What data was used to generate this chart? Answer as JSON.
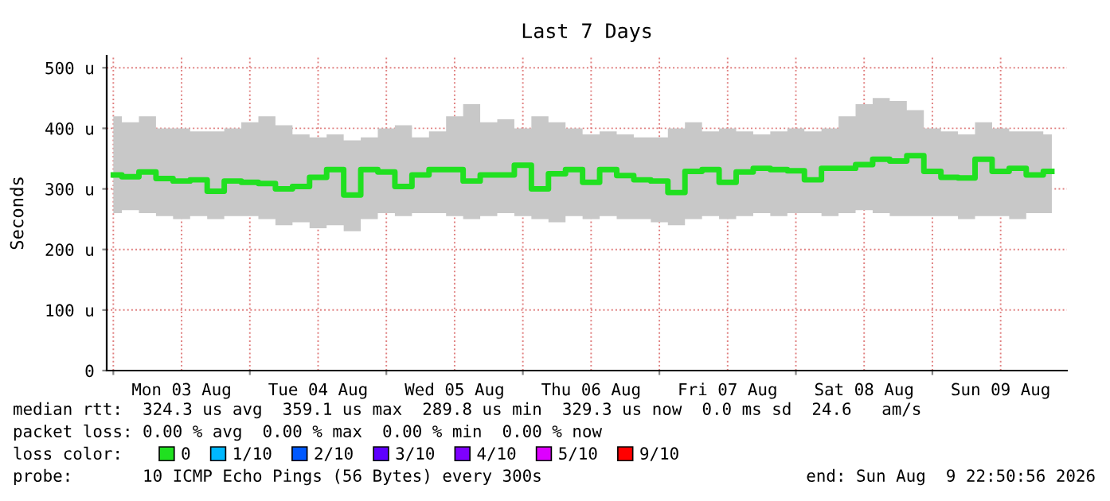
{
  "chart_data": {
    "type": "step",
    "title": "Last 7 Days",
    "ylabel": "Seconds",
    "legend_title": "loss color:",
    "x": [
      "2026-08-03T00:00",
      "2026-08-03T03:00",
      "2026-08-03T06:00",
      "2026-08-03T09:00",
      "2026-08-03T12:00",
      "2026-08-03T15:00",
      "2026-08-03T18:00",
      "2026-08-03T21:00",
      "2026-08-04T00:00",
      "2026-08-04T03:00",
      "2026-08-04T06:00",
      "2026-08-04T09:00",
      "2026-08-04T12:00",
      "2026-08-04T15:00",
      "2026-08-04T18:00",
      "2026-08-04T21:00",
      "2026-08-05T00:00",
      "2026-08-05T03:00",
      "2026-08-05T06:00",
      "2026-08-05T09:00",
      "2026-08-05T12:00",
      "2026-08-05T15:00",
      "2026-08-05T18:00",
      "2026-08-05T21:00",
      "2026-08-06T00:00",
      "2026-08-06T03:00",
      "2026-08-06T06:00",
      "2026-08-06T09:00",
      "2026-08-06T12:00",
      "2026-08-06T15:00",
      "2026-08-06T18:00",
      "2026-08-06T21:00",
      "2026-08-07T00:00",
      "2026-08-07T03:00",
      "2026-08-07T06:00",
      "2026-08-07T09:00",
      "2026-08-07T12:00",
      "2026-08-07T15:00",
      "2026-08-07T18:00",
      "2026-08-07T21:00",
      "2026-08-08T00:00",
      "2026-08-08T03:00",
      "2026-08-08T06:00",
      "2026-08-08T09:00",
      "2026-08-08T12:00",
      "2026-08-08T15:00",
      "2026-08-08T18:00",
      "2026-08-08T21:00",
      "2026-08-09T00:00",
      "2026-08-09T03:00",
      "2026-08-09T06:00",
      "2026-08-09T09:00",
      "2026-08-09T12:00",
      "2026-08-09T15:00",
      "2026-08-09T18:00",
      "2026-08-09T21:00"
    ],
    "series": [
      {
        "name": "0",
        "color": "#20e020",
        "values": [
          323,
          320,
          328,
          317,
          313,
          315,
          296,
          313,
          311,
          309,
          300,
          304,
          319,
          332,
          290,
          332,
          328,
          304,
          323,
          332,
          332,
          313,
          323,
          323,
          339,
          300,
          325,
          332,
          311,
          332,
          322,
          315,
          313,
          294,
          329,
          332,
          311,
          328,
          334,
          332,
          330,
          315,
          334,
          334,
          340,
          349,
          346,
          355,
          329,
          319,
          318,
          349,
          329,
          334,
          323,
          329
        ],
        "upper": [
          420,
          410,
          420,
          400,
          400,
          395,
          395,
          400,
          410,
          420,
          405,
          390,
          385,
          390,
          380,
          385,
          400,
          405,
          385,
          395,
          420,
          440,
          410,
          415,
          400,
          420,
          410,
          400,
          390,
          395,
          390,
          385,
          385,
          400,
          410,
          395,
          400,
          395,
          390,
          395,
          400,
          395,
          400,
          420,
          440,
          450,
          445,
          430,
          400,
          395,
          390,
          410,
          400,
          395,
          395,
          390
        ],
        "lower": [
          260,
          265,
          260,
          255,
          250,
          255,
          250,
          255,
          255,
          250,
          240,
          245,
          235,
          240,
          230,
          250,
          260,
          255,
          260,
          260,
          255,
          250,
          255,
          260,
          255,
          250,
          245,
          255,
          250,
          255,
          250,
          250,
          245,
          240,
          250,
          255,
          250,
          255,
          260,
          255,
          260,
          260,
          255,
          260,
          265,
          260,
          255,
          255,
          255,
          255,
          250,
          255,
          255,
          250,
          260,
          260
        ]
      },
      {
        "name": "1/10",
        "color": "#00b8ff",
        "values": [
          null,
          null,
          null,
          null,
          null,
          null,
          null,
          null,
          null,
          null,
          null,
          null,
          null,
          null,
          null,
          null,
          null,
          null,
          null,
          null,
          null,
          null,
          null,
          null,
          null,
          null,
          null,
          null,
          null,
          null,
          null,
          null,
          null,
          null,
          null,
          null,
          null,
          null,
          null,
          null,
          null,
          null,
          null,
          null,
          null,
          null,
          null,
          null,
          null,
          null,
          null,
          null,
          null,
          null,
          null,
          null
        ]
      },
      {
        "name": "2/10",
        "color": "#0059ff",
        "values": [
          null,
          null,
          null,
          null,
          null,
          null,
          null,
          null,
          null,
          null,
          null,
          null,
          null,
          null,
          null,
          null,
          null,
          null,
          null,
          null,
          null,
          null,
          null,
          null,
          null,
          null,
          null,
          null,
          null,
          null,
          null,
          null,
          null,
          null,
          null,
          null,
          null,
          null,
          null,
          null,
          null,
          null,
          null,
          null,
          null,
          null,
          null,
          null,
          null,
          null,
          null,
          null,
          null,
          null,
          null,
          null
        ]
      },
      {
        "name": "3/10",
        "color": "#5e00ff",
        "values": [
          null,
          null,
          null,
          null,
          null,
          null,
          null,
          null,
          null,
          null,
          null,
          null,
          null,
          null,
          null,
          null,
          null,
          null,
          null,
          null,
          null,
          null,
          null,
          null,
          null,
          null,
          null,
          null,
          null,
          null,
          null,
          null,
          null,
          null,
          null,
          null,
          null,
          null,
          null,
          null,
          null,
          null,
          null,
          null,
          null,
          null,
          null,
          null,
          null,
          null,
          null,
          null,
          null,
          null,
          null,
          null
        ]
      },
      {
        "name": "4/10",
        "color": "#7e00ff",
        "values": [
          null,
          null,
          null,
          null,
          null,
          null,
          null,
          null,
          null,
          null,
          null,
          null,
          null,
          null,
          null,
          null,
          null,
          null,
          null,
          null,
          null,
          null,
          null,
          null,
          null,
          null,
          null,
          null,
          null,
          null,
          null,
          null,
          null,
          null,
          null,
          null,
          null,
          null,
          null,
          null,
          null,
          null,
          null,
          null,
          null,
          null,
          null,
          null,
          null,
          null,
          null,
          null,
          null,
          null,
          null,
          null
        ]
      },
      {
        "name": "5/10",
        "color": "#dd00ff",
        "values": [
          null,
          null,
          null,
          null,
          null,
          null,
          null,
          null,
          null,
          null,
          null,
          null,
          null,
          null,
          null,
          null,
          null,
          null,
          null,
          null,
          null,
          null,
          null,
          null,
          null,
          null,
          null,
          null,
          null,
          null,
          null,
          null,
          null,
          null,
          null,
          null,
          null,
          null,
          null,
          null,
          null,
          null,
          null,
          null,
          null,
          null,
          null,
          null,
          null,
          null,
          null,
          null,
          null,
          null,
          null,
          null
        ]
      },
      {
        "name": "9/10",
        "color": "#ff0000",
        "values": [
          null,
          null,
          null,
          null,
          null,
          null,
          null,
          null,
          null,
          null,
          null,
          null,
          null,
          null,
          null,
          null,
          null,
          null,
          null,
          null,
          null,
          null,
          null,
          null,
          null,
          null,
          null,
          null,
          null,
          null,
          null,
          null,
          null,
          null,
          null,
          null,
          null,
          null,
          null,
          null,
          null,
          null,
          null,
          null,
          null,
          null,
          null,
          null,
          null,
          null,
          null,
          null,
          null,
          null,
          null,
          null
        ]
      }
    ],
    "xlim": [
      "2026-08-02T22:50",
      "2026-08-09T23:40"
    ],
    "xticks": [
      {
        "value": "2026-08-03T00:00",
        "label": null
      },
      {
        "value": "2026-08-03T12:00",
        "label": "Mon 03 Aug"
      },
      {
        "value": "2026-08-04T00:00",
        "label": null
      },
      {
        "value": "2026-08-04T12:00",
        "label": "Tue 04 Aug"
      },
      {
        "value": "2026-08-05T00:00",
        "label": null
      },
      {
        "value": "2026-08-05T12:00",
        "label": "Wed 05 Aug"
      },
      {
        "value": "2026-08-06T00:00",
        "label": null
      },
      {
        "value": "2026-08-06T12:00",
        "label": "Thu 06 Aug"
      },
      {
        "value": "2026-08-07T00:00",
        "label": null
      },
      {
        "value": "2026-08-07T12:00",
        "label": "Fri 07 Aug"
      },
      {
        "value": "2026-08-08T00:00",
        "label": null
      },
      {
        "value": "2026-08-08T12:00",
        "label": "Sat 08 Aug"
      },
      {
        "value": "2026-08-09T00:00",
        "label": null
      },
      {
        "value": "2026-08-09T12:00",
        "label": "Sun 09 Aug"
      }
    ],
    "ylim": [
      0,
      520
    ],
    "yticks": [
      0,
      {
        "value": 100,
        "label": "100 u"
      },
      {
        "value": 200,
        "label": "200 u"
      },
      {
        "value": 300,
        "label": "300 u"
      },
      {
        "value": 400,
        "label": "400 u"
      },
      {
        "value": 500,
        "label": "500 u"
      }
    ],
    "grid": true,
    "legend": "bottom",
    "annotations": [
      "median rtt:  324.3 us avg  359.1 us max  289.8 us min  329.3 us now  0.0 ms sd  24.6   am/s",
      "packet loss: 0.00 % avg  0.00 % max  0.00 % min  0.00 % now",
      "probe:       10 ICMP Echo Pings (56 Bytes) every 300s",
      "end: Sun Aug  9 22:50:56 2026"
    ]
  }
}
